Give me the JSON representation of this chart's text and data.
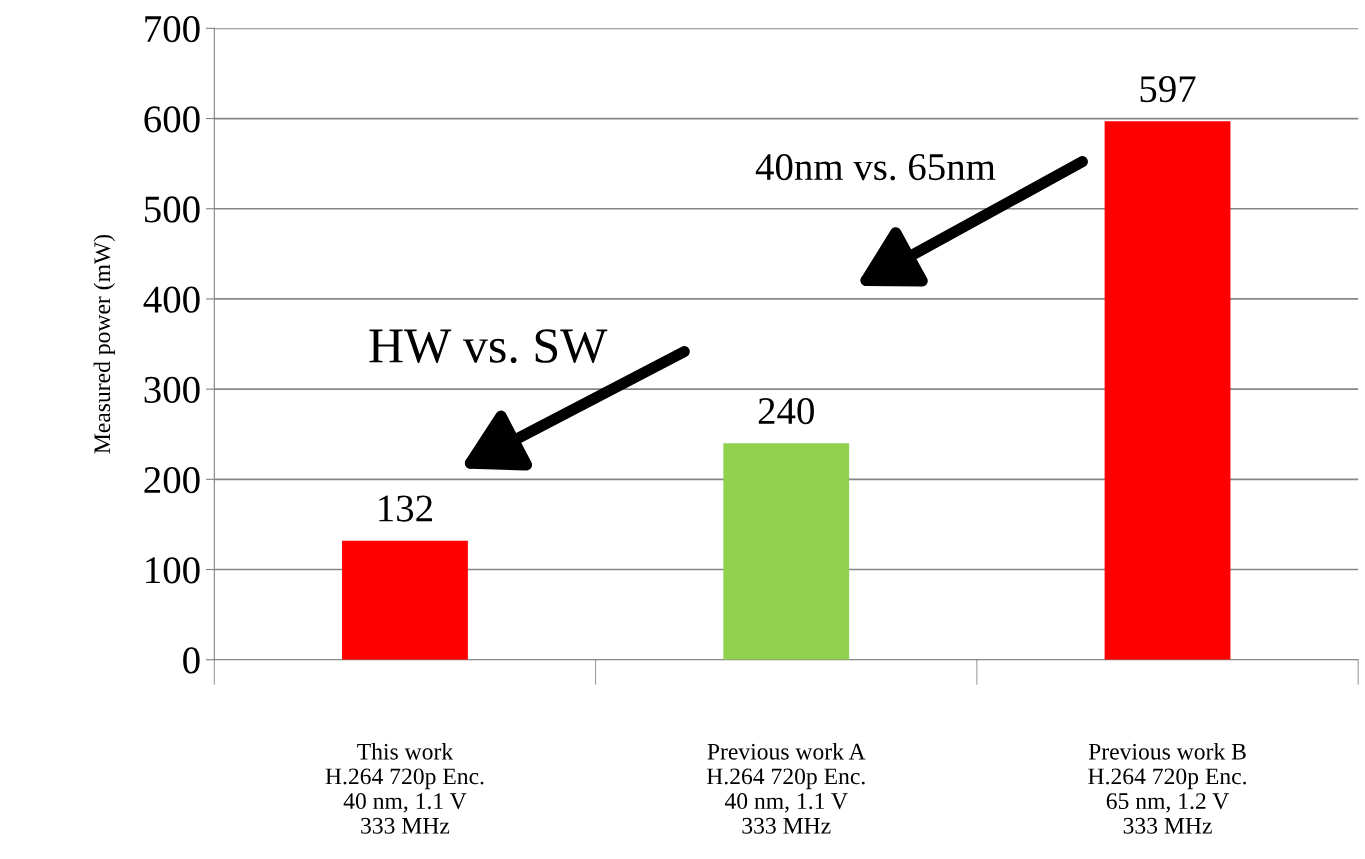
{
  "chart_data": {
    "type": "bar",
    "ylabel": "Measured power (mW)",
    "categories": [
      "This work\nH.264 720p Enc.\n40 nm, 1.1 V\n333 MHz",
      "Previous work A\nH.264 720p Enc.\n40 nm, 1.1 V\n333 MHz",
      "Previous work B\nH.264 720p Enc.\n65 nm, 1.2 V\n333 MHz"
    ],
    "values": [
      132,
      240,
      597
    ],
    "colors": [
      "#ff0000",
      "#92d050",
      "#ff0000"
    ],
    "ylim": [
      0,
      700
    ],
    "yticks": [
      0,
      100,
      200,
      300,
      400,
      500,
      600,
      700
    ],
    "grid": "y",
    "data_labels": true,
    "legend": false,
    "annotations": [
      "HW vs. SW",
      "40nm vs. 65nm"
    ]
  }
}
